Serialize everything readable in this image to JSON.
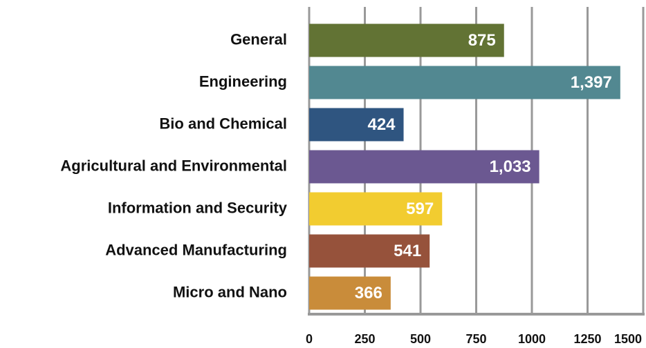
{
  "chart_data": {
    "type": "hbar",
    "categories": [
      "General",
      "Engineering",
      "Bio and Chemical",
      "Agricultural and Environmental",
      "Information and Security",
      "Advanced Manufacturing",
      "Micro and Nano"
    ],
    "values": [
      875,
      1397,
      424,
      1033,
      597,
      541,
      366
    ],
    "value_labels": [
      "875",
      "1,397",
      "424",
      "1,033",
      "597",
      "541",
      "366"
    ],
    "colors": [
      "#627334",
      "#528891",
      "#2f5580",
      "#6b5891",
      "#f2cc30",
      "#96523b",
      "#c98c3a"
    ],
    "xlim": [
      0,
      1500
    ],
    "xticks": [
      0,
      250,
      500,
      750,
      1000,
      1250,
      1500
    ],
    "grid": true
  }
}
